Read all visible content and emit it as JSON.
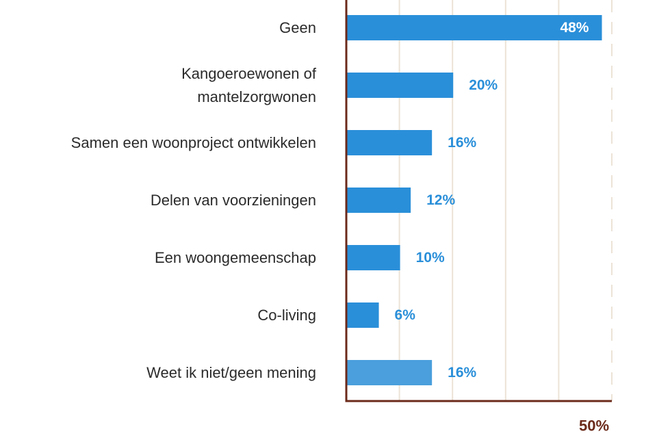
{
  "chart_data": {
    "type": "bar",
    "orientation": "horizontal",
    "categories": [
      "Geen",
      "Kangoeroewonen of mantelzorgwonen",
      "Samen een woonproject ontwikkelen",
      "Delen van voorzieningen",
      "Een woongemeenschap",
      "Co-living",
      "Weet ik niet/geen mening"
    ],
    "values": [
      48,
      20,
      16,
      12,
      10,
      6,
      16
    ],
    "value_labels": [
      "48%",
      "20%",
      "16%",
      "12%",
      "10%",
      "6%",
      "16%"
    ],
    "xlim": [
      0,
      50
    ],
    "x_ticks": [
      {
        "value": 50,
        "label": "50%"
      }
    ],
    "grid": true,
    "title": "",
    "xlabel": "",
    "ylabel": "",
    "colors": {
      "bar": "#2a8fd9",
      "bar_last": "#4a9fdc",
      "value_label": "#2a8fd9",
      "value_label_inside": "#ffffff",
      "axis": "#6b2a1a",
      "tick_label": "#6b2a1a",
      "grid": "#ece3d6",
      "category_label": "#2b2b2b"
    }
  }
}
